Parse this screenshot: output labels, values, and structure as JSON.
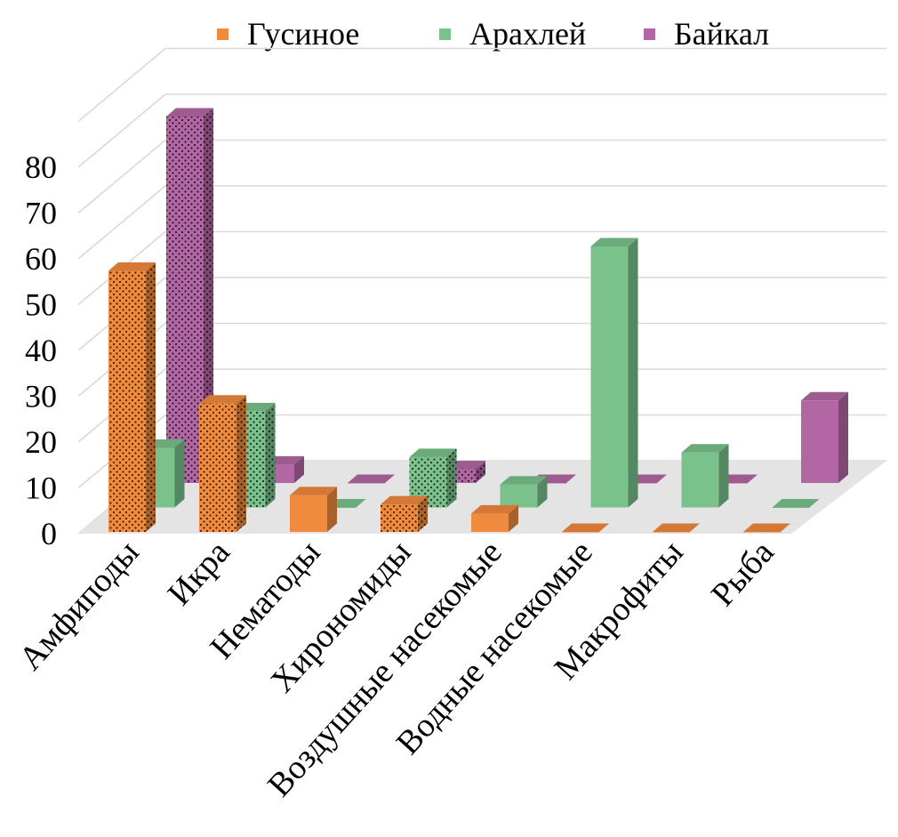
{
  "chart_data": {
    "type": "bar",
    "subtype": "3d-clustered-column",
    "categories": [
      "Амфиподы",
      "Икра",
      "Нематоды",
      "Хирономиды",
      "Воздушные насекомые",
      "Водные насекомые",
      "Макрофиты",
      "Рыба"
    ],
    "series": [
      {
        "name": "Гусиное",
        "color": "#f08a3c",
        "pattern": [
          true,
          true,
          false,
          true,
          false,
          false,
          false,
          false
        ],
        "values": [
          57,
          28,
          8,
          6,
          4,
          0,
          0,
          0
        ]
      },
      {
        "name": "Арахлей",
        "color": "#7ac18c",
        "pattern": [
          false,
          true,
          false,
          true,
          false,
          false,
          false,
          false
        ],
        "values": [
          13,
          21,
          0,
          11,
          5,
          57,
          12,
          0
        ]
      },
      {
        "name": "Байкал",
        "color": "#b267a4",
        "pattern": [
          true,
          false,
          false,
          true,
          false,
          false,
          false,
          false
        ],
        "values": [
          80,
          4,
          0,
          3,
          0,
          0,
          0,
          18
        ]
      }
    ],
    "y_ticks": [
      "0",
      "10",
      "20",
      "30",
      "40",
      "50",
      "60",
      "70",
      "80"
    ],
    "ylim": [
      0,
      90
    ],
    "legend_position": "top",
    "grid": true
  }
}
